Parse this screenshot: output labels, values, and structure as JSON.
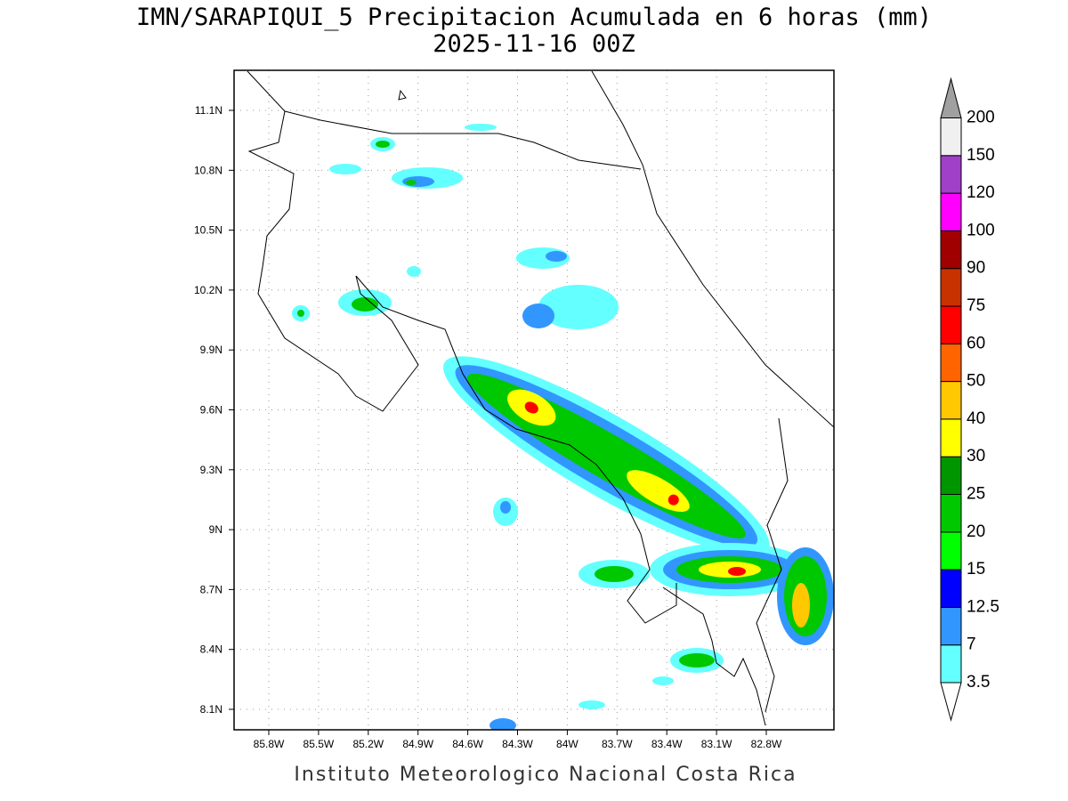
{
  "title": "IMN/SARAPIQUI_5 Precipitacion Acumulada en 6 horas (mm)",
  "subtitle": "2025-11-16 00Z",
  "footer": "Instituto Meteorologico Nacional Costa Rica",
  "map": {
    "lon_ticks": [
      "85.8W",
      "85.5W",
      "85.2W",
      "84.9W",
      "84.6W",
      "84.3W",
      "84W",
      "83.7W",
      "83.4W",
      "83.1W",
      "82.8W"
    ],
    "lat_ticks": [
      "11.1N",
      "10.8N",
      "10.5N",
      "10.2N",
      "9.9N",
      "9.6N",
      "9.3N",
      "9N",
      "8.7N",
      "8.4N",
      "8.1N"
    ]
  },
  "colorbar": {
    "levels": [
      3.5,
      7,
      12.5,
      15,
      20,
      25,
      30,
      40,
      50,
      60,
      75,
      90,
      100,
      120,
      150,
      200
    ],
    "colors": [
      "#64ffff",
      "#3296ff",
      "#0000ff",
      "#00ff00",
      "#00c800",
      "#009600",
      "#ffff00",
      "#ffc800",
      "#ff6400",
      "#ff0000",
      "#c83200",
      "#a00000",
      "#ff00ff",
      "#a040c8",
      "#f0f0f0"
    ],
    "under_color": "#ffffff",
    "over_color": "#a0a0a0"
  }
}
